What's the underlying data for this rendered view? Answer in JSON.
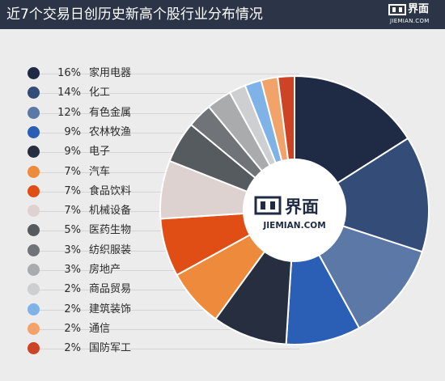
{
  "title": "近7个交易日创历史新高个股行业分布情况",
  "brand": {
    "name_zh": "界面",
    "name_en": "JIEMIAN.COM"
  },
  "chart_data": {
    "type": "pie",
    "style": "donut",
    "legend_position": "left",
    "slices": [
      {
        "label": "家用电器",
        "value": 16,
        "display": "16%",
        "color": "#1f2b45"
      },
      {
        "label": "化工",
        "value": 14,
        "display": "14%",
        "color": "#344d78"
      },
      {
        "label": "有色金属",
        "value": 12,
        "display": "12%",
        "color": "#5b78a6"
      },
      {
        "label": "农林牧渔",
        "value": 9,
        "display": "9%",
        "color": "#2a5fb5"
      },
      {
        "label": "电子",
        "value": 9,
        "display": "9%",
        "color": "#262e3f"
      },
      {
        "label": "汽车",
        "value": 7,
        "display": "7%",
        "color": "#ee8a3c"
      },
      {
        "label": "食品饮料",
        "value": 7,
        "display": "7%",
        "color": "#e14e15"
      },
      {
        "label": "机械设备",
        "value": 7,
        "display": "7%",
        "color": "#ddd2d0"
      },
      {
        "label": "医药生物",
        "value": 5,
        "display": "5%",
        "color": "#555b5f"
      },
      {
        "label": "纺织服装",
        "value": 3,
        "display": "3%",
        "color": "#707478"
      },
      {
        "label": "房地产",
        "value": 3,
        "display": "3%",
        "color": "#a9abad"
      },
      {
        "label": "商品贸易",
        "value": 2,
        "display": "2%",
        "color": "#cdcfd1"
      },
      {
        "label": "建筑装饰",
        "value": 2,
        "display": "2%",
        "color": "#7fb3e8"
      },
      {
        "label": "通信",
        "value": 2,
        "display": "2%",
        "color": "#f2a36a"
      },
      {
        "label": "国防军工",
        "value": 2,
        "display": "2%",
        "color": "#cc4425"
      }
    ]
  }
}
